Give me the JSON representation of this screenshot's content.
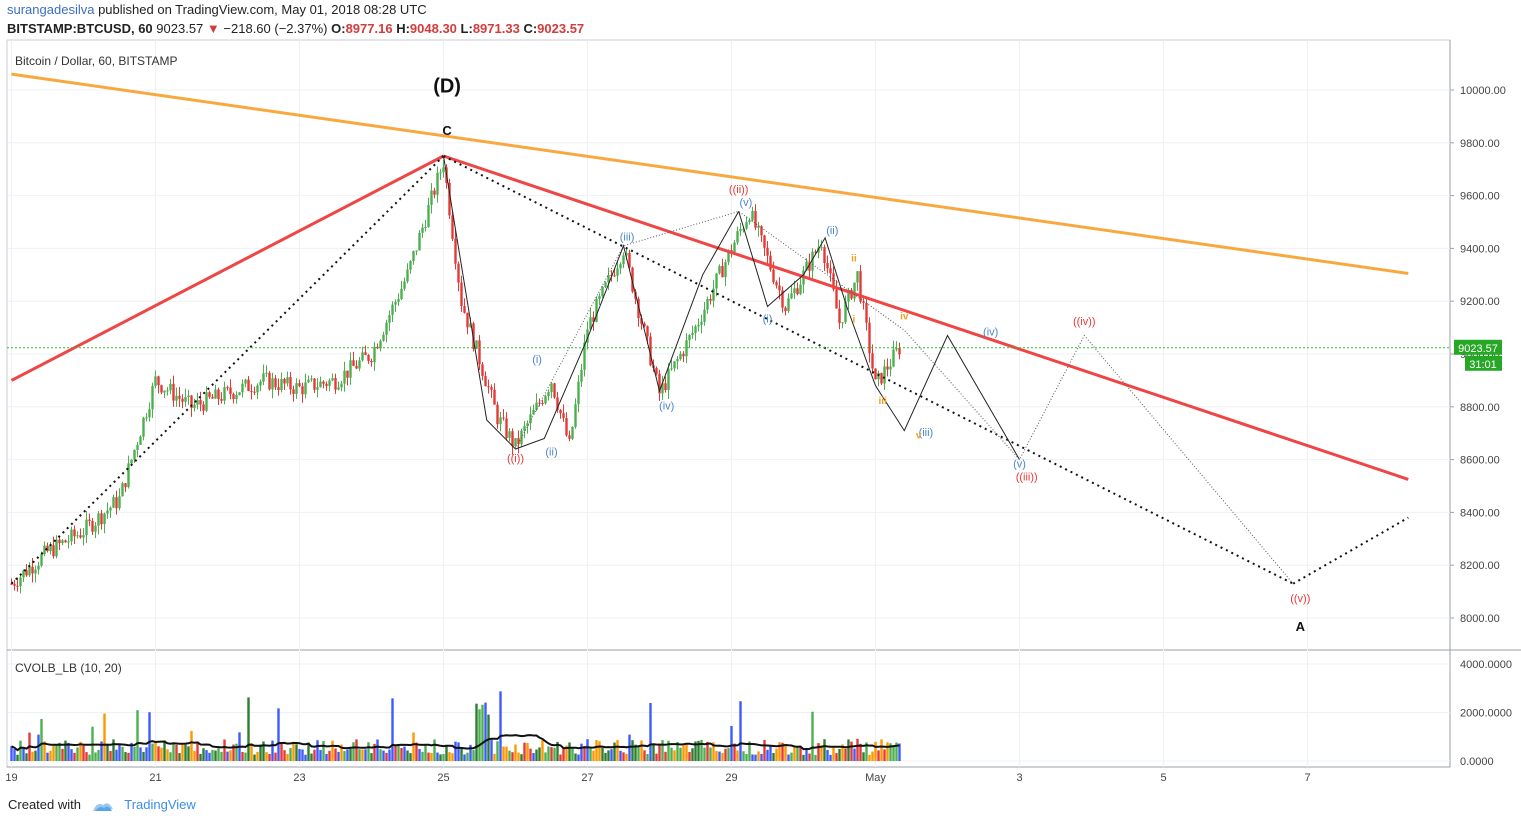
{
  "header": {
    "author": "surangadesilva",
    "published_text": "published on TradingView.com, May 01, 2018 08:28 UTC",
    "symbol": "BITSTAMP:BTCUSD, 60",
    "last": "9023.57",
    "change": "−218.60 (−2.37%)",
    "o_label": "O:",
    "o_value": "8977.16",
    "h_label": "H:",
    "h_value": "9048.30",
    "l_label": "L:",
    "l_value": "8971.33",
    "c_label": "C:",
    "c_value": "9023.57"
  },
  "main_pane": {
    "title": "Bitcoin / Dollar, 60, BITSTAMP"
  },
  "volume_pane": {
    "title": "CVOLB_LB (10, 20)"
  },
  "price_badge": {
    "price": "9023.57",
    "countdown": "31:01"
  },
  "footer": {
    "created_with": "Created with",
    "brand": "TradingView"
  },
  "colors": {
    "up_candle": "#4caf50",
    "down_candle": "#e53935",
    "trend_orange": "#f7a940",
    "trend_red": "#ef4545",
    "label_red": "#e53935",
    "label_blue": "#4a86c8",
    "label_orange": "#f0a020",
    "price_line": "#2fbf2f"
  },
  "chart_data": {
    "type": "candlestick",
    "symbol": "BTCUSD",
    "timeframe": "60",
    "ylim": [
      7950,
      10050
    ],
    "y_ticks": [
      "10000.00",
      "9800.00",
      "9600.00",
      "9400.00",
      "9200.00",
      "9000.00",
      "8800.00",
      "8600.00",
      "8400.00",
      "8200.00",
      "8000.00"
    ],
    "x_ticks": [
      "19",
      "21",
      "23",
      "25",
      "27",
      "29",
      "May",
      "3",
      "5",
      "7"
    ],
    "close_series": [
      [
        "Apr 19 00:00",
        8130
      ],
      [
        "Apr 19 12:00",
        8250
      ],
      [
        "Apr 20 00:00",
        8330
      ],
      [
        "Apr 20 12:00",
        8450
      ],
      [
        "Apr 21 00:00",
        8900
      ],
      [
        "Apr 21 12:00",
        8800
      ],
      [
        "Apr 22 00:00",
        8850
      ],
      [
        "Apr 22 12:00",
        8900
      ],
      [
        "Apr 23 00:00",
        8870
      ],
      [
        "Apr 23 12:00",
        8900
      ],
      [
        "Apr 24 00:00",
        9000
      ],
      [
        "Apr 24 12:00",
        9300
      ],
      [
        "Apr 25 00:00",
        9730
      ],
      [
        "Apr 25 06:00",
        9200
      ],
      [
        "Apr 25 18:00",
        8760
      ],
      [
        "Apr 26 00:00",
        8650
      ],
      [
        "Apr 26 12:00",
        8900
      ],
      [
        "Apr 26 18:00",
        8650
      ],
      [
        "Apr 27 00:00",
        9100
      ],
      [
        "Apr 27 12:00",
        9400
      ],
      [
        "Apr 28 00:00",
        8850
      ],
      [
        "Apr 28 12:00",
        9100
      ],
      [
        "Apr 29 00:00",
        9400
      ],
      [
        "Apr 29 06:00",
        9540
      ],
      [
        "Apr 29 18:00",
        9180
      ],
      [
        "Apr 30 00:00",
        9300
      ],
      [
        "Apr 30 06:00",
        9430
      ],
      [
        "Apr 30 12:00",
        9120
      ],
      [
        "Apr 30 18:00",
        9300
      ],
      [
        "May 01 00:00",
        8880
      ],
      [
        "May 01 08:00",
        9023.57
      ]
    ],
    "volume_ylim": [
      0,
      4200
    ],
    "volume_ticks": [
      "4000.0000",
      "2000.0000",
      "0.0000"
    ],
    "annotations": {
      "major": [
        "(D)",
        "C",
        "A"
      ],
      "red": [
        "((ii))",
        "((i))",
        "((iii))",
        "((iv))",
        "((v))"
      ],
      "blue": [
        "(iii)",
        "(v)",
        "(ii)",
        "(i)",
        "(ii)",
        "(iv)",
        "(i)",
        "(iii)",
        "(iv)",
        "(v)"
      ],
      "orange": [
        "ii",
        "i",
        "iv",
        "iii",
        "v"
      ]
    }
  }
}
